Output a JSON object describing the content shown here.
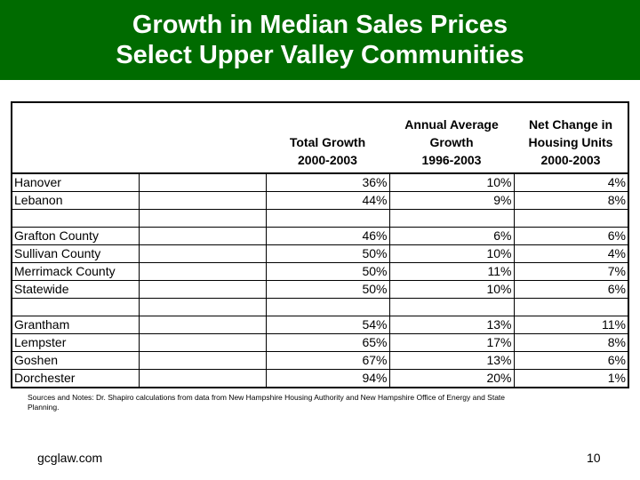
{
  "header": {
    "title_line1": "Growth in Median Sales Prices",
    "title_line2": "Select Upper Valley Communities",
    "background_color": "#006b00",
    "text_color": "#ffffff"
  },
  "table": {
    "headers": [
      "",
      "",
      "Total Growth\n2000-2003",
      "Annual Average\nGrowth\n1996-2003",
      "Net Change in\nHousing Units\n2000-2003"
    ],
    "rows": [
      [
        "Hanover",
        "",
        "36%",
        "10%",
        "4%"
      ],
      [
        "Lebanon",
        "",
        "44%",
        "9%",
        "8%"
      ],
      [
        "",
        "",
        "",
        "",
        ""
      ],
      [
        "Grafton County",
        "",
        "46%",
        "6%",
        "6%"
      ],
      [
        "Sullivan County",
        "",
        "50%",
        "10%",
        "4%"
      ],
      [
        "Merrimack County",
        "",
        "50%",
        "11%",
        "7%"
      ],
      [
        "Statewide",
        "",
        "50%",
        "10%",
        "6%"
      ],
      [
        "",
        "",
        "",
        "",
        ""
      ],
      [
        "Grantham",
        "",
        "54%",
        "13%",
        "11%"
      ],
      [
        "Lempster",
        "",
        "65%",
        "17%",
        "8%"
      ],
      [
        "Goshen",
        "",
        "67%",
        "13%",
        "6%"
      ],
      [
        "Dorchester",
        "",
        "94%",
        "20%",
        "1%"
      ]
    ]
  },
  "notes": "Sources and Notes:  Dr. Shapiro calculations from data from New Hampshire Housing Authority and New Hampshire Office of Energy and State Planning.",
  "footer": {
    "site": "gcglaw.com",
    "page_number": "10"
  }
}
